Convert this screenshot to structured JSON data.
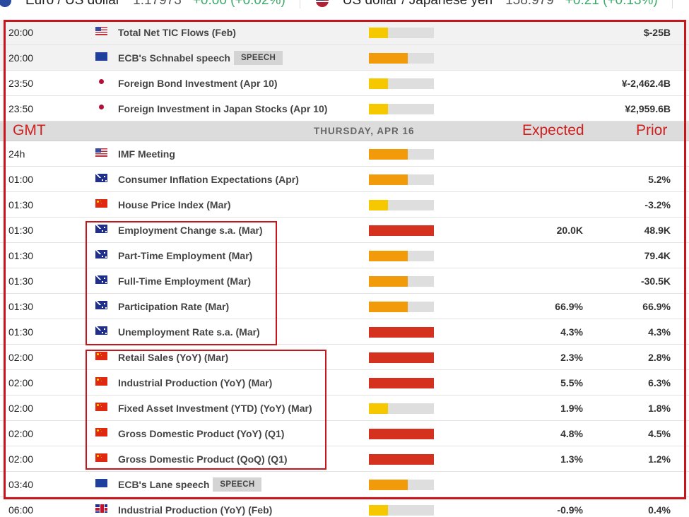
{
  "ticker": [
    {
      "flag": "eu-flag-icon",
      "name": "Euro / US dollar",
      "price": "1.17973",
      "change": "+0.00 (+0.02%)"
    },
    {
      "flag": "us-flag-icon",
      "name": "US dollar / Japanese yen",
      "price": "158.979",
      "change": "+0.21 (+0.13%)"
    }
  ],
  "colors": {
    "impact_low": "#f5c800",
    "impact_medium": "#f19a0a",
    "impact_high": "#d5311f",
    "annotation_red": "#c8151c",
    "positive_change": "#3daa6a"
  },
  "rows_before": [
    {
      "time": "20:00",
      "flag": "us",
      "event": "Total Net TIC Flows (Feb)",
      "badge": "",
      "impact": "low",
      "expected": "",
      "prior": "$-25B",
      "shaded": true
    },
    {
      "time": "20:00",
      "flag": "eu",
      "event": "ECB's Schnabel speech",
      "badge": "SPEECH",
      "impact": "med",
      "expected": "",
      "prior": "",
      "shaded": true
    },
    {
      "time": "23:50",
      "flag": "jp",
      "event": "Foreign Bond Investment (Apr 10)",
      "badge": "",
      "impact": "low",
      "expected": "",
      "prior": "¥-2,462.4B",
      "shaded": false
    },
    {
      "time": "23:50",
      "flag": "jp",
      "event": "Foreign Investment in Japan Stocks (Apr 10)",
      "badge": "",
      "impact": "low",
      "expected": "",
      "prior": "¥2,959.6B",
      "shaded": false
    }
  ],
  "day_header": {
    "label": "THURSDAY, APR 16",
    "annotation_gmt": "GMT",
    "annotation_expected": "Expected",
    "annotation_prior": "Prior"
  },
  "rows_after": [
    {
      "time": "24h",
      "flag": "us",
      "event": "IMF Meeting",
      "badge": "",
      "impact": "med",
      "expected": "",
      "prior": ""
    },
    {
      "time": "01:00",
      "flag": "au",
      "event": "Consumer Inflation Expectations (Apr)",
      "badge": "",
      "impact": "med",
      "expected": "",
      "prior": "5.2%"
    },
    {
      "time": "01:30",
      "flag": "cn",
      "event": "House Price Index (Mar)",
      "badge": "",
      "impact": "low",
      "expected": "",
      "prior": "-3.2%"
    },
    {
      "time": "01:30",
      "flag": "au",
      "event": "Employment Change s.a. (Mar)",
      "badge": "",
      "impact": "high",
      "expected": "20.0K",
      "prior": "48.9K"
    },
    {
      "time": "01:30",
      "flag": "au",
      "event": "Part-Time Employment (Mar)",
      "badge": "",
      "impact": "med",
      "expected": "",
      "prior": "79.4K"
    },
    {
      "time": "01:30",
      "flag": "au",
      "event": "Full-Time Employment (Mar)",
      "badge": "",
      "impact": "med",
      "expected": "",
      "prior": "-30.5K"
    },
    {
      "time": "01:30",
      "flag": "au",
      "event": "Participation Rate (Mar)",
      "badge": "",
      "impact": "med",
      "expected": "66.9%",
      "prior": "66.9%"
    },
    {
      "time": "01:30",
      "flag": "au",
      "event": "Unemployment Rate s.a. (Mar)",
      "badge": "",
      "impact": "high",
      "expected": "4.3%",
      "prior": "4.3%"
    },
    {
      "time": "02:00",
      "flag": "cn",
      "event": "Retail Sales (YoY) (Mar)",
      "badge": "",
      "impact": "high",
      "expected": "2.3%",
      "prior": "2.8%"
    },
    {
      "time": "02:00",
      "flag": "cn",
      "event": "Industrial Production (YoY) (Mar)",
      "badge": "",
      "impact": "high",
      "expected": "5.5%",
      "prior": "6.3%"
    },
    {
      "time": "02:00",
      "flag": "cn",
      "event": "Fixed Asset Investment (YTD) (YoY) (Mar)",
      "badge": "",
      "impact": "low",
      "expected": "1.9%",
      "prior": "1.8%"
    },
    {
      "time": "02:00",
      "flag": "cn",
      "event": "Gross Domestic Product (YoY) (Q1)",
      "badge": "",
      "impact": "high",
      "expected": "4.8%",
      "prior": "4.5%"
    },
    {
      "time": "02:00",
      "flag": "cn",
      "event": "Gross Domestic Product (QoQ) (Q1)",
      "badge": "",
      "impact": "high",
      "expected": "1.3%",
      "prior": "1.2%"
    },
    {
      "time": "03:40",
      "flag": "eu",
      "event": "ECB's Lane speech",
      "badge": "SPEECH",
      "impact": "med",
      "expected": "",
      "prior": ""
    },
    {
      "time": "06:00",
      "flag": "gb",
      "event": "Industrial Production (YoY) (Feb)",
      "badge": "",
      "impact": "low",
      "expected": "-0.9%",
      "prior": "0.4%"
    }
  ]
}
